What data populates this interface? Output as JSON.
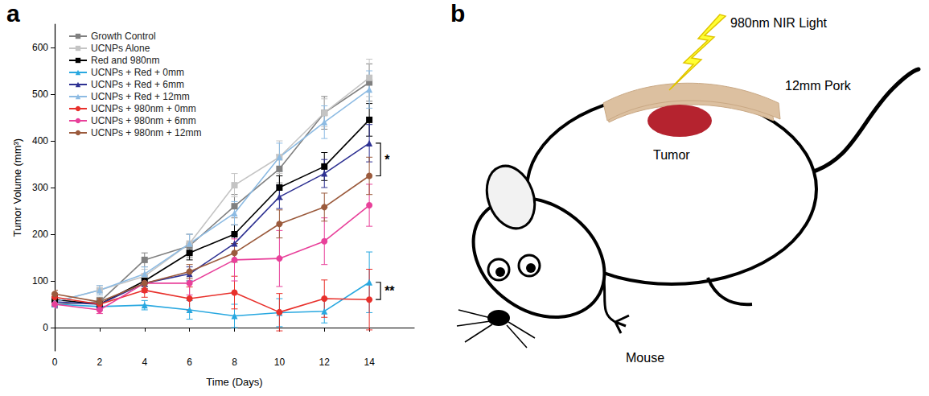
{
  "panel_labels": [
    "a",
    "b"
  ],
  "chart_data": {
    "type": "line",
    "x_label": "Time (Days)",
    "y_label": "Tumor Volume (mm³)",
    "x": [
      0,
      2,
      4,
      6,
      8,
      10,
      12,
      14
    ],
    "xlim": [
      0,
      16
    ],
    "xticks": [
      0,
      2,
      4,
      6,
      8,
      10,
      12,
      14
    ],
    "ylim": [
      -50,
      650
    ],
    "yticks": [
      0,
      100,
      200,
      300,
      400,
      500,
      600
    ],
    "grid": false,
    "legend": "top-left",
    "series": [
      {
        "name": "Growth Control",
        "color": "#808080",
        "marker": "square",
        "values": [
          50,
          55,
          145,
          175,
          260,
          340,
          460,
          525
        ],
        "errors": [
          8,
          10,
          15,
          25,
          25,
          30,
          35,
          40
        ]
      },
      {
        "name": "UCNPs Alone",
        "color": "#c4c4c4",
        "marker": "square",
        "values": [
          55,
          80,
          110,
          180,
          305,
          365,
          460,
          535
        ],
        "errors": [
          8,
          10,
          15,
          20,
          25,
          35,
          30,
          40
        ]
      },
      {
        "name": "Red and 980nm",
        "color": "#000000",
        "marker": "square",
        "values": [
          60,
          50,
          100,
          160,
          200,
          300,
          345,
          445
        ],
        "errors": [
          8,
          8,
          12,
          15,
          20,
          25,
          30,
          35
        ]
      },
      {
        "name": "UCNPs + Red + 0mm",
        "color": "#29a8e0",
        "marker": "triangle",
        "values": [
          50,
          45,
          48,
          38,
          25,
          32,
          35,
          97
        ],
        "errors": [
          8,
          8,
          10,
          20,
          25,
          30,
          25,
          65
        ]
      },
      {
        "name": "UCNPs + Red + 6mm",
        "color": "#2e3192",
        "marker": "triangle",
        "values": [
          55,
          50,
          95,
          115,
          180,
          280,
          330,
          395
        ],
        "errors": [
          8,
          8,
          12,
          15,
          20,
          25,
          30,
          40
        ]
      },
      {
        "name": "UCNPs + Red + 12mm",
        "color": "#8dbbe3",
        "marker": "triangle",
        "values": [
          55,
          80,
          115,
          180,
          245,
          365,
          440,
          510
        ],
        "errors": [
          8,
          10,
          15,
          20,
          25,
          30,
          35,
          40
        ]
      },
      {
        "name": "UCNPs + 980nm + 0mm",
        "color": "#e8302b",
        "marker": "circle",
        "values": [
          65,
          50,
          80,
          62,
          75,
          33,
          62,
          60
        ],
        "errors": [
          8,
          10,
          15,
          25,
          35,
          40,
          40,
          65
        ]
      },
      {
        "name": "UCNPs + 980nm + 6mm",
        "color": "#e8409a",
        "marker": "circle",
        "values": [
          50,
          38,
          95,
          95,
          145,
          148,
          185,
          262
        ],
        "errors": [
          8,
          8,
          20,
          25,
          45,
          60,
          50,
          45
        ]
      },
      {
        "name": "UCNPs + 980nm + 12mm",
        "color": "#9b5a3c",
        "marker": "circle",
        "values": [
          72,
          55,
          95,
          120,
          160,
          222,
          258,
          325
        ],
        "errors": [
          8,
          8,
          12,
          15,
          20,
          30,
          30,
          40
        ]
      }
    ],
    "annotations": [
      {
        "text": "*",
        "x": 14,
        "between": [
          "UCNPs + Red + 6mm",
          "UCNPs + 980nm + 12mm"
        ]
      },
      {
        "text": "**",
        "x": 14,
        "between": [
          "UCNPs + Red + 0mm",
          "UCNPs + 980nm + 0mm"
        ]
      }
    ]
  },
  "diagram": {
    "light": "980nm NIR Light",
    "tissue": "12mm Pork",
    "tumor": "Tumor",
    "animal": "Mouse"
  }
}
